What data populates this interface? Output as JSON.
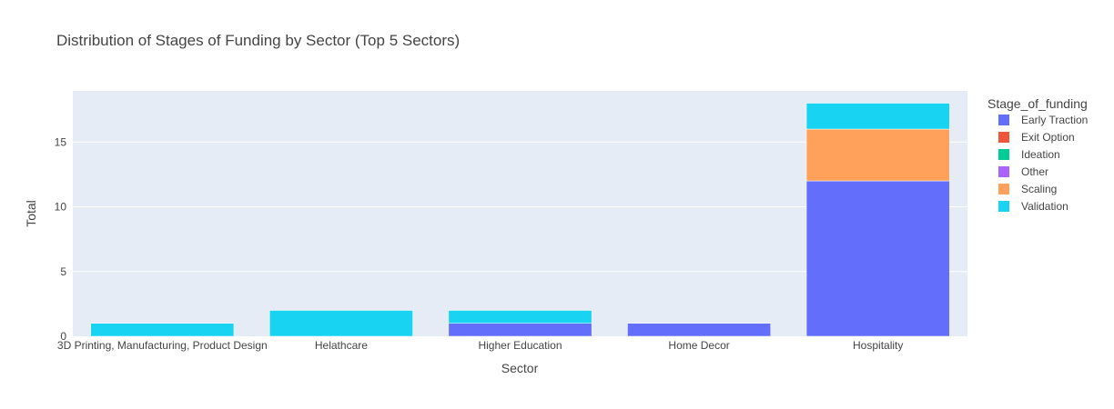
{
  "chart_data": {
    "type": "bar",
    "stacked": true,
    "title": "Distribution of Stages of Funding by Sector (Top 5 Sectors)",
    "xlabel": "Sector",
    "ylabel": "Total",
    "ylim": [
      0,
      18.95
    ],
    "yticks": [
      0,
      5,
      10,
      15
    ],
    "grid": true,
    "legend_title": "Stage_of_funding",
    "legend_position": "right",
    "categories": [
      "3D Printing, Manufacturing, Product Design",
      "Helathcare",
      "Higher Education",
      "Home Decor",
      "Hospitality"
    ],
    "series": [
      {
        "name": "Early Traction",
        "color": "#636efa",
        "values": [
          0,
          0,
          1,
          1,
          12
        ]
      },
      {
        "name": "Exit Option",
        "color": "#ef553b",
        "values": [
          0,
          0,
          0,
          0,
          0
        ]
      },
      {
        "name": "Ideation",
        "color": "#00cc96",
        "values": [
          0,
          0,
          0,
          0,
          0
        ]
      },
      {
        "name": "Other",
        "color": "#ab63fa",
        "values": [
          0,
          0,
          0,
          0,
          0
        ]
      },
      {
        "name": "Scaling",
        "color": "#ffa15a",
        "values": [
          0,
          0,
          0,
          0,
          4
        ]
      },
      {
        "name": "Validation",
        "color": "#19d3f3",
        "values": [
          1,
          2,
          1,
          0,
          2
        ]
      }
    ]
  }
}
